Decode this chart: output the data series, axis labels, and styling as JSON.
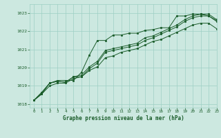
{
  "background_color": "#cce8e0",
  "plot_bg_color": "#cce8e0",
  "grid_color": "#9ecfc4",
  "line_color": "#1a5c2a",
  "xlabel": "Graphe pression niveau de la mer (hPa)",
  "xlim": [
    -0.5,
    23
  ],
  "ylim": [
    1017.8,
    1023.5
  ],
  "yticks": [
    1018,
    1019,
    1020,
    1021,
    1022,
    1023
  ],
  "xticks": [
    0,
    1,
    2,
    3,
    4,
    5,
    6,
    7,
    8,
    9,
    10,
    11,
    12,
    13,
    14,
    15,
    16,
    17,
    18,
    19,
    20,
    21,
    22,
    23
  ],
  "series": [
    [
      1018.2,
      1018.55,
      1019.15,
      1019.3,
      1019.3,
      1019.3,
      1019.75,
      1020.7,
      1021.5,
      1021.5,
      1021.8,
      1021.8,
      1021.9,
      1021.9,
      1022.05,
      1022.1,
      1022.2,
      1022.2,
      1022.85,
      1022.85,
      1022.95,
      1022.95,
      1022.85,
      1022.6
    ],
    [
      1018.2,
      1018.65,
      1019.15,
      1019.25,
      1019.2,
      1019.5,
      1019.5,
      1019.95,
      1020.25,
      1020.85,
      1020.95,
      1021.05,
      1021.15,
      1021.25,
      1021.5,
      1021.65,
      1021.85,
      1022.05,
      1022.25,
      1022.55,
      1022.75,
      1022.85,
      1022.85,
      1022.55
    ],
    [
      1018.2,
      1018.6,
      1019.15,
      1019.25,
      1019.2,
      1019.5,
      1019.6,
      1020.05,
      1020.35,
      1020.95,
      1021.05,
      1021.15,
      1021.25,
      1021.35,
      1021.65,
      1021.75,
      1021.95,
      1022.15,
      1022.35,
      1022.65,
      1022.85,
      1022.95,
      1022.95,
      1022.65
    ],
    [
      1018.2,
      1018.55,
      1019.0,
      1019.15,
      1019.15,
      1019.4,
      1019.5,
      1019.85,
      1020.05,
      1020.55,
      1020.65,
      1020.85,
      1020.95,
      1021.05,
      1021.25,
      1021.45,
      1021.55,
      1021.75,
      1021.95,
      1022.15,
      1022.35,
      1022.45,
      1022.45,
      1022.15
    ]
  ]
}
